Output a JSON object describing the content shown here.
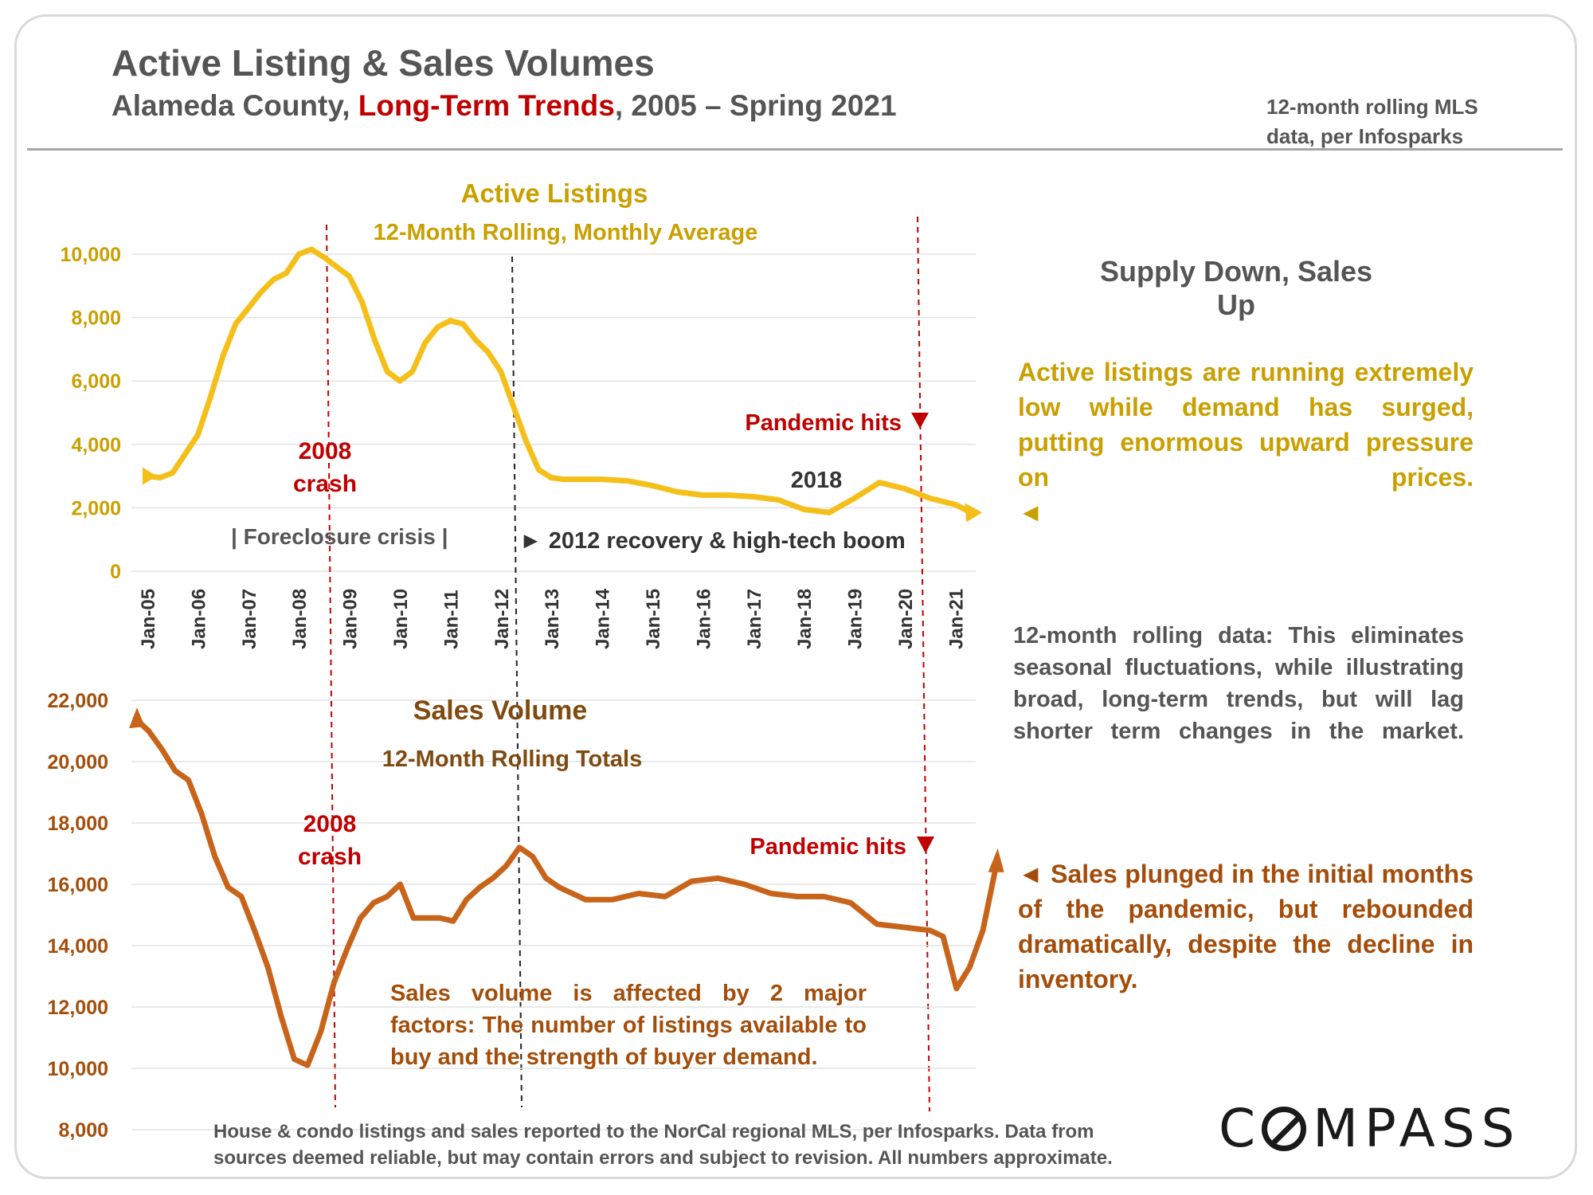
{
  "header": {
    "title": "Active Listing & Sales Volumes",
    "subtitle_pre": "Alameda County, ",
    "subtitle_red": "Long-Term Trends",
    "subtitle_post": ", 2005 – Spring 2021",
    "source_note": "12-month rolling MLS data, per Infosparks"
  },
  "sidebar": {
    "heading": "Supply Down, Sales Up",
    "listings_text": "Active listings are running extremely low while demand has surged, putting enormous upward pressure on prices.",
    "listings_arrow": "◄",
    "rolling_text": "12-month rolling data: This eliminates seasonal fluctuations, while illustrating broad, long-term trends, but will lag shorter term changes in the market.",
    "sales_text": "◄ Sales plunged in the initial months of the pandemic, but rebounded dramatically, despite the decline in inventory."
  },
  "footer": {
    "text": "House & condo listings and sales reported to the NorCal regional MLS, per Infosparks. Data from sources deemed reliable, but may contain errors and subject to revision. All numbers approximate."
  },
  "brand": {
    "logo_pre": "C",
    "logo_post": "MPASS"
  },
  "colors": {
    "listings": "#f5bf1a",
    "listings_text": "#c9a000",
    "sales": "#c8641a",
    "sales_text": "#a44d0a",
    "red": "#c00000",
    "gray_text": "#555555",
    "black_text": "#333333"
  },
  "chart_data": [
    {
      "type": "line",
      "title": "Active Listings",
      "subtitle": "12-Month Rolling, Monthly Average",
      "ylim": [
        0,
        10000
      ],
      "yticks": [
        "10,000",
        "8,000",
        "6,000",
        "4,000",
        "2,000",
        "0"
      ],
      "ytick_values": [
        10000,
        8000,
        6000,
        4000,
        2000,
        0
      ],
      "categories": [
        "Jan-05",
        "Jan-06",
        "Jan-07",
        "Jan-08",
        "Jan-09",
        "Jan-10",
        "Jan-11",
        "Jan-12",
        "Jan-13",
        "Jan-14",
        "Jan-15",
        "Jan-16",
        "Jan-17",
        "Jan-18",
        "Jan-19",
        "Jan-20",
        "Jan-21"
      ],
      "grid": true,
      "series": [
        {
          "x": [
            2005.0,
            2005.25,
            2005.5,
            2005.75,
            2006.0,
            2006.25,
            2006.5,
            2006.75,
            2007.0,
            2007.25,
            2007.5,
            2007.75,
            2008.0,
            2008.25,
            2008.5,
            2008.75,
            2009.0,
            2009.25,
            2009.5,
            2009.75,
            2010.0,
            2010.25,
            2010.5,
            2010.75,
            2011.0,
            2011.25,
            2011.5,
            2011.75,
            2012.0,
            2012.25,
            2012.5,
            2012.75,
            2013.0,
            2013.25,
            2013.5,
            2014.0,
            2014.5,
            2015.0,
            2015.5,
            2016.0,
            2016.5,
            2017.0,
            2017.5,
            2018.0,
            2018.5,
            2019.0,
            2019.5,
            2020.0,
            2020.5,
            2021.0,
            2021.25
          ],
          "values": [
            3000,
            2950,
            3100,
            3700,
            4300,
            5500,
            6800,
            7800,
            8300,
            8800,
            9200,
            9400,
            10000,
            10150,
            9900,
            9600,
            9300,
            8500,
            7300,
            6300,
            6000,
            6300,
            7200,
            7700,
            7900,
            7800,
            7300,
            6900,
            6300,
            5200,
            4100,
            3200,
            2950,
            2900,
            2900,
            2900,
            2850,
            2700,
            2500,
            2400,
            2400,
            2350,
            2250,
            1950,
            1850,
            2300,
            2800,
            2600,
            2300,
            2100,
            1900
          ]
        }
      ],
      "annotations": {
        "crash_line1": "2008",
        "crash_line2": "crash",
        "pandemic": "Pandemic hits",
        "year_2018": "2018",
        "foreclosure": "|  Foreclosure crisis  |",
        "recovery": "► 2012 recovery & high-tech boom"
      }
    },
    {
      "type": "line",
      "title": "Sales Volume",
      "subtitle": "12-Month Rolling Totals",
      "ylim": [
        8000,
        22000
      ],
      "yticks": [
        "22,000",
        "20,000",
        "18,000",
        "16,000",
        "14,000",
        "12,000",
        "10,000",
        "8,000"
      ],
      "ytick_values": [
        22000,
        20000,
        18000,
        16000,
        14000,
        12000,
        10000,
        8000
      ],
      "grid": true,
      "series": [
        {
          "x": [
            2005.0,
            2005.25,
            2005.5,
            2005.75,
            2006.0,
            2006.25,
            2006.5,
            2006.75,
            2007.0,
            2007.25,
            2007.5,
            2007.75,
            2008.0,
            2008.25,
            2008.5,
            2008.75,
            2009.0,
            2009.25,
            2009.5,
            2009.75,
            2010.0,
            2010.25,
            2010.5,
            2010.75,
            2011.0,
            2011.25,
            2011.5,
            2011.75,
            2012.0,
            2012.25,
            2012.5,
            2012.75,
            2013.0,
            2013.25,
            2013.5,
            2014.0,
            2014.5,
            2015.0,
            2015.5,
            2016.0,
            2016.5,
            2017.0,
            2017.5,
            2018.0,
            2018.5,
            2019.0,
            2019.5,
            2020.0,
            2020.25,
            2020.5,
            2020.75,
            2021.0,
            2021.25
          ],
          "values": [
            21400,
            21000,
            20400,
            19700,
            19400,
            18300,
            16900,
            15900,
            15600,
            14500,
            13300,
            11700,
            10300,
            10100,
            11200,
            12800,
            13900,
            14900,
            15400,
            15600,
            16000,
            14900,
            14900,
            14900,
            14800,
            15500,
            15900,
            16200,
            16600,
            17200,
            16900,
            16200,
            15900,
            15700,
            15500,
            15500,
            15700,
            15600,
            16100,
            16200,
            16000,
            15700,
            15600,
            15600,
            15400,
            14700,
            14600,
            14500,
            14300,
            12600,
            13300,
            14500,
            16600
          ]
        }
      ],
      "annotations": {
        "crash_line1": "2008",
        "crash_line2": "crash",
        "pandemic": "Pandemic hits",
        "factors_text": "Sales volume is affected by 2 major factors: The number of listings available to buy and the strength of buyer demand."
      }
    }
  ]
}
